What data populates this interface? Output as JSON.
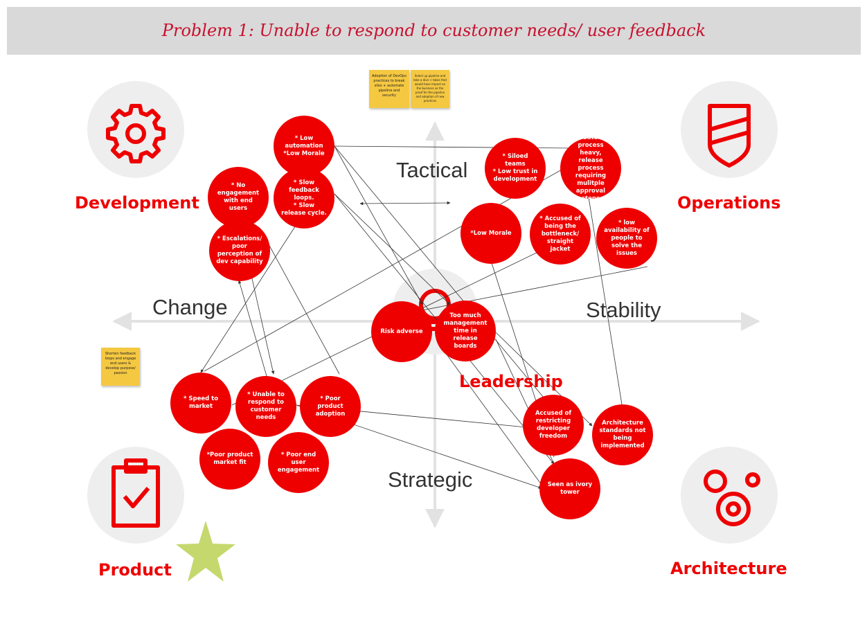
{
  "title": "Problem 1: Unable to respond to customer needs/ user feedback",
  "axes": {
    "top": "Tactical",
    "bottom": "Strategic",
    "left": "Change",
    "right": "Stability"
  },
  "quadrants": {
    "development": "Development",
    "operations": "Operations",
    "product": "Product",
    "architecture": "Architecture",
    "leadership": "Leadership"
  },
  "icons": {
    "development": "gear-icon",
    "operations": "shield-icon",
    "product": "clipboard-check-icon",
    "architecture": "gears-icon",
    "leadership": "lightbulb-icon",
    "star": "star-icon"
  },
  "colors": {
    "accent": "#ee0000",
    "banner_bg": "#d9d9d9",
    "title": "#c8102e",
    "sticky": "#f5c842",
    "star": "#c5d86d",
    "icon_bg": "#eeeeee",
    "axis": "#e2e2e2"
  },
  "sticky_notes": [
    "Adoption of DevOps practices to break silos + automate pipeline and security",
    "Select up pipeline and take a dive + takes that would have impact on the business as the proof for the pipeline and adoption of new practices",
    "Shorten feedback loops and engage end users & develop purpose/ passion"
  ],
  "nodes": [
    {
      "id": "low-automation",
      "text": "* Low automation\n*Low Morale"
    },
    {
      "id": "no-engagement",
      "text": "* No engagement with end users"
    },
    {
      "id": "slow-feedback",
      "text": "* Slow feedback loops.\n* Slow release cycle."
    },
    {
      "id": "escalations",
      "text": "* Escalations/ poor perception of dev capability"
    },
    {
      "id": "siloed-teams",
      "text": "* Siloed teams\n* Low trust in development"
    },
    {
      "id": "gated",
      "text": "* Gated, process heavy, release process requiring mulitple approval steps"
    },
    {
      "id": "low-morale",
      "text": "*Low Morale"
    },
    {
      "id": "bottleneck",
      "text": "* Accused of being the bottleneck/ straight jacket"
    },
    {
      "id": "low-availability",
      "text": "* low availability of people to solve the issues"
    },
    {
      "id": "risk-adverse",
      "text": "Risk adverse"
    },
    {
      "id": "management-time",
      "text": "Too much management time in release boards"
    },
    {
      "id": "speed-to-market",
      "text": "* Speed to market"
    },
    {
      "id": "unable-to-respond",
      "text": "* Unable to respond to customer needs"
    },
    {
      "id": "poor-adoption",
      "text": "* Poor product adoption"
    },
    {
      "id": "market-fit",
      "text": "*Poor product market fit"
    },
    {
      "id": "poor-engagement",
      "text": "* Poor end user engagement"
    },
    {
      "id": "restricting-freedom",
      "text": "Accused of restricting developer freedom"
    },
    {
      "id": "arch-standards",
      "text": "Architecture standards not being implemented"
    },
    {
      "id": "ivory-tower",
      "text": "Seen as ivory tower"
    }
  ]
}
